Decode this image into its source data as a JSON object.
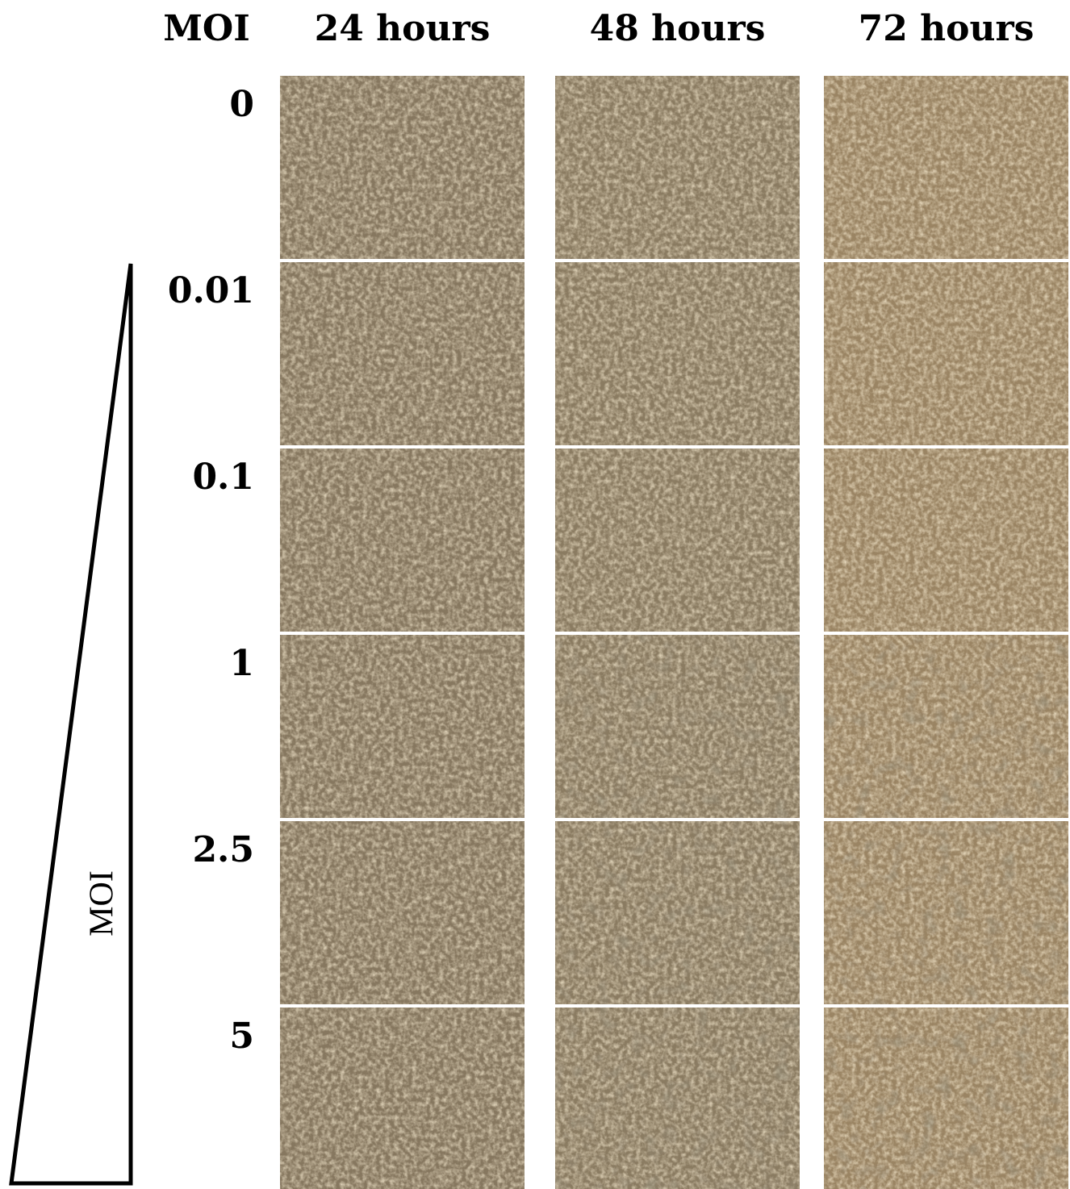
{
  "header": {
    "corner": "MOI",
    "columns": [
      "24 hours",
      "48 hours",
      "72 hours"
    ]
  },
  "rows": [
    "0",
    "0.01",
    "0.1",
    "1",
    "2.5",
    "5"
  ],
  "gradient_label": "MOI"
}
